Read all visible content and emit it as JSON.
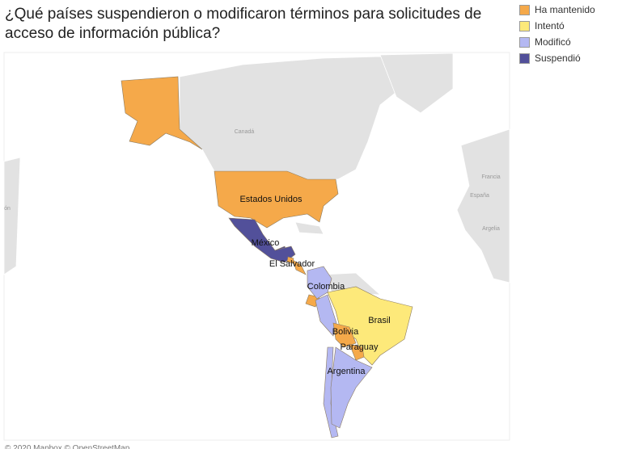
{
  "title": "¿Qué países suspendieron o modificaron términos para solicitudes de acceso de información pública?",
  "legend": [
    {
      "label": "Ha mantenido",
      "color": "#f5a94a"
    },
    {
      "label": "Intentó",
      "color": "#fde97a"
    },
    {
      "label": "Modificó",
      "color": "#b4b8f2"
    },
    {
      "label": "Suspendió",
      "color": "#52509a"
    }
  ],
  "countries": [
    {
      "name": "Estados Unidos",
      "status": "Ha mantenido"
    },
    {
      "name": "México",
      "status": "Suspendió"
    },
    {
      "name": "El Salvador",
      "status": "Ha mantenido"
    },
    {
      "name": "Colombia",
      "status": "Modificó"
    },
    {
      "name": "Brasil",
      "status": "Intentó"
    },
    {
      "name": "Bolivia",
      "status": "Ha mantenido"
    },
    {
      "name": "Paraguay",
      "status": "Ha mantenido"
    },
    {
      "name": "Argentina",
      "status": "Modificó"
    }
  ],
  "basemap_labels": [
    "Canadá",
    "Francia",
    "España",
    "Argelia",
    "ón"
  ],
  "attribution": "© 2020 Mapbox © OpenStreetMap"
}
